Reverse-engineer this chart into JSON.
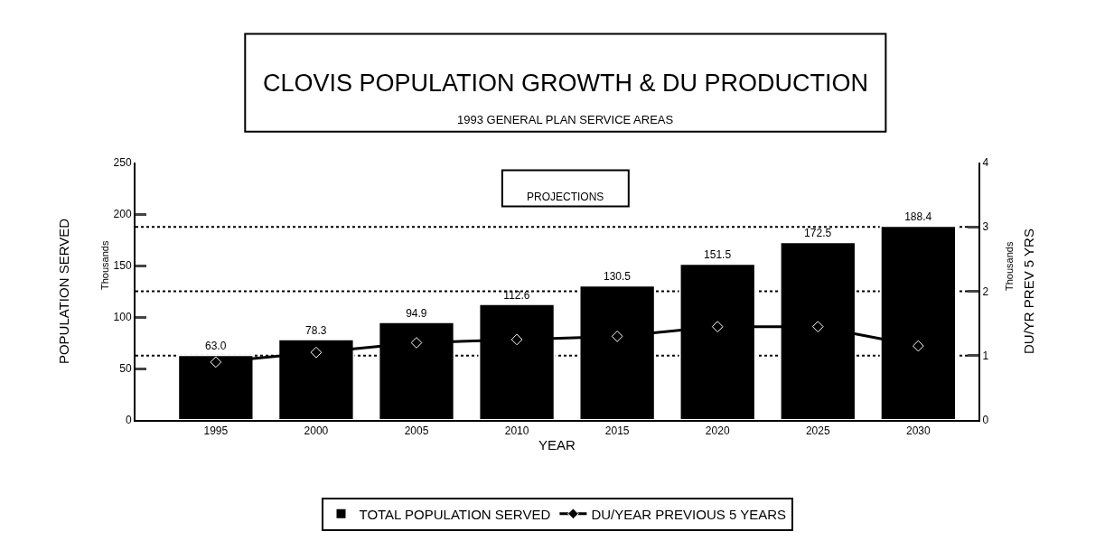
{
  "chart_data": {
    "type": "bar",
    "title": "CLOVIS POPULATION GROWTH & DU PRODUCTION",
    "subtitle": "1993 GENERAL PLAN SERVICE AREAS",
    "xlabel": "YEAR",
    "ylabel": "POPULATION SERVED",
    "y2label": "DU/YR PREV 5 YRS",
    "annotations": [
      "PROJECTIONS",
      "Thousands",
      "Thousands"
    ],
    "categories": [
      "1995",
      "2000",
      "2005",
      "2010",
      "2015",
      "2020",
      "2025",
      "2030"
    ],
    "series": [
      {
        "name": "TOTAL POPULATION SERVED",
        "color": "#000000",
        "values": [
          63.0,
          78.3,
          94.9,
          112.6,
          130.5,
          151.5,
          172.5,
          188.4
        ],
        "value_labels": [
          "63.0",
          "78.3",
          "94.9",
          "112.6",
          "130.5",
          "151.5",
          "172.5",
          "188.4"
        ]
      },
      {
        "name": "DU/YEAR PREVIOUS 5 YEARS",
        "type": "line",
        "axis": "y2",
        "color": "#000000",
        "marker": "diamond",
        "values": [
          0.9,
          1.05,
          1.2,
          1.25,
          1.3,
          1.45,
          1.45,
          1.15
        ]
      }
    ],
    "ylim": [
      0,
      250
    ],
    "yticks": [
      0,
      50,
      100,
      150,
      200,
      250
    ],
    "y2lim": [
      0,
      4
    ],
    "y2ticks": [
      0,
      1,
      2,
      3,
      4
    ],
    "ref_lines": [
      {
        "axis": "y2",
        "value": 1,
        "line_style": "dotted",
        "color": "#000000"
      },
      {
        "axis": "y2",
        "value": 2,
        "line_style": "dotted",
        "color": "#000000"
      },
      {
        "axis": "y2",
        "value": 3,
        "line_style": "dotted",
        "color": "#000000"
      }
    ],
    "legend": "bottom"
  }
}
